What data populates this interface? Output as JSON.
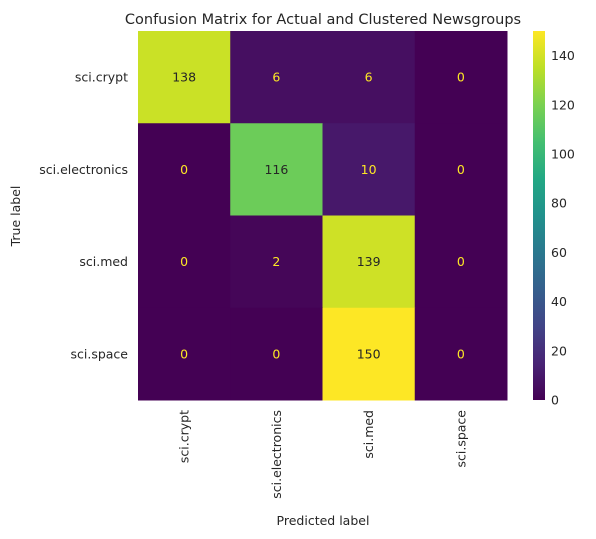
{
  "chart_data": {
    "type": "heatmap",
    "title": "Confusion Matrix for Actual and Clustered Newsgroups",
    "xlabel": "Predicted label",
    "ylabel": "True label",
    "x_categories": [
      "sci.crypt",
      "sci.electronics",
      "sci.med",
      "sci.space"
    ],
    "y_categories": [
      "sci.crypt",
      "sci.electronics",
      "sci.med",
      "sci.space"
    ],
    "values": [
      [
        138,
        6,
        6,
        0
      ],
      [
        0,
        116,
        10,
        0
      ],
      [
        0,
        2,
        139,
        0
      ],
      [
        0,
        0,
        150,
        0
      ]
    ],
    "colormap": "viridis",
    "vmin": 0,
    "vmax": 150,
    "colorbar_ticks": [
      0,
      20,
      40,
      60,
      80,
      100,
      120,
      140
    ],
    "dark_label_color": "#262626",
    "light_label_color": "#fde725"
  }
}
